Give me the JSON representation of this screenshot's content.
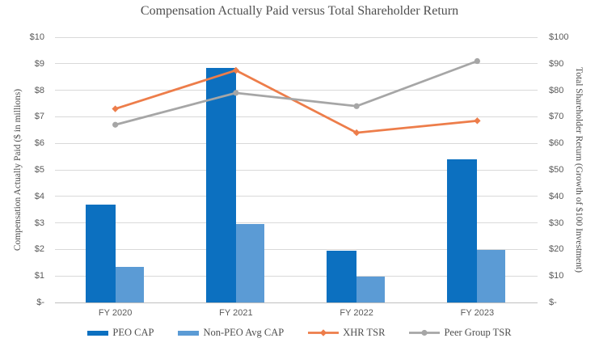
{
  "chart_data": {
    "type": "combo-bar-line",
    "title": "Compensation Actually Paid versus Total Shareholder Return",
    "categories": [
      "FY 2020",
      "FY 2021",
      "FY 2022",
      "FY 2023"
    ],
    "bar_series": [
      {
        "name": "PEO CAP",
        "axis": "left",
        "color": "#0c70c0",
        "values": [
          3.7,
          8.85,
          1.95,
          5.4
        ]
      },
      {
        "name": "Non-PEO Avg CAP",
        "axis": "left",
        "color": "#5b9bd5",
        "values": [
          1.35,
          2.97,
          0.97,
          1.97
        ]
      }
    ],
    "line_series": [
      {
        "name": "XHR TSR",
        "axis": "right",
        "color": "#ed7d4a",
        "marker": "diamond",
        "values": [
          73,
          87.5,
          64,
          68.5
        ]
      },
      {
        "name": "Peer Group TSR",
        "axis": "right",
        "color": "#a6a6a6",
        "marker": "circle",
        "values": [
          67,
          79,
          74,
          91
        ]
      }
    ],
    "left_axis": {
      "title": "Compensation Actually Paid ($ in millions)",
      "ticks": [
        "$-",
        "$1",
        "$2",
        "$3",
        "$4",
        "$5",
        "$6",
        "$7",
        "$8",
        "$9",
        "$10"
      ],
      "min": 0,
      "max": 10
    },
    "right_axis": {
      "title": "Total Shareholder Return (Growth of $100 Investment)",
      "ticks": [
        "$-",
        "$10",
        "$20",
        "$30",
        "$40",
        "$50",
        "$60",
        "$70",
        "$80",
        "$90",
        "$100"
      ],
      "min": 0,
      "max": 100
    },
    "grid": true,
    "legend_position": "bottom",
    "colors": {
      "gridline": "#d9d9d9",
      "axis_line": "#bfbfbf",
      "tick_text": "#595959",
      "title_text": "#4e4e4e"
    }
  }
}
